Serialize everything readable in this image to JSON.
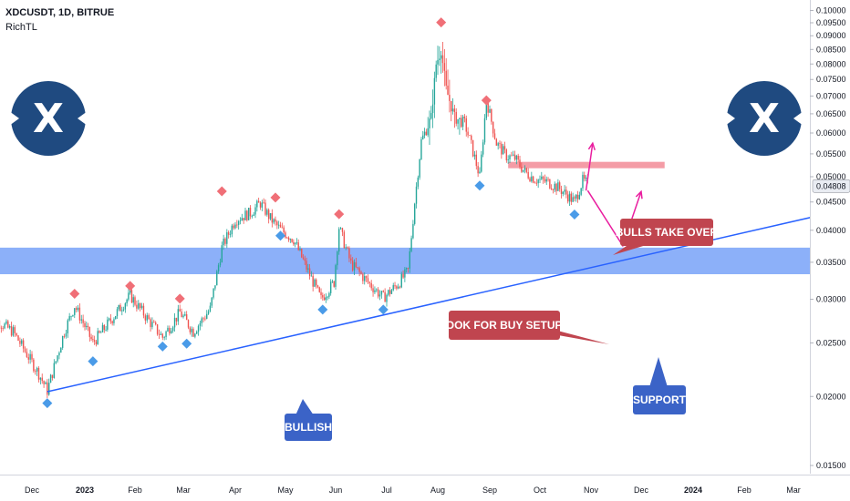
{
  "header": {
    "symbol": "XDCUSDT, 1D, BITRUE",
    "indicator": "RichTL"
  },
  "logos": {
    "letter": "X",
    "color": "#1f4a80"
  },
  "colors": {
    "up": "#26a69a",
    "down": "#ef5350",
    "support_zone": "#5b8ef7",
    "trendline": "#2962ff",
    "resistance_zone": "#f28b96",
    "path_arrow": "#e91e9f",
    "callout_red": "#c0454f",
    "callout_blue": "#3b63c7",
    "marker_top": "#f06f77",
    "marker_bottom": "#4a9be8"
  },
  "callouts": {
    "bulls": "BULLS TAKE OVER",
    "buy": "LOOK FOR BUY SETUPS",
    "bullish": "BULLISH",
    "support": "SUPPORT"
  },
  "current_price": "0.04808",
  "chart_data": {
    "type": "candlestick",
    "title": "XDCUSDT, 1D, BITRUE",
    "y_scale": "log",
    "ylim": [
      0.0145,
      0.101
    ],
    "y_ticks": [
      "0.10000",
      "0.09500",
      "0.09000",
      "0.08500",
      "0.08000",
      "0.07500",
      "0.07000",
      "0.06500",
      "0.06000",
      "0.05500",
      "0.05000",
      "0.04500",
      "0.04000",
      "0.03500",
      "0.03000",
      "0.02500",
      "0.02000",
      "0.01500"
    ],
    "x_ticks": [
      "Dec",
      "2023",
      "Feb",
      "Mar",
      "Apr",
      "May",
      "Jun",
      "Jul",
      "Aug",
      "Sep",
      "Oct",
      "Nov",
      "Dec",
      "2024",
      "Feb",
      "Mar"
    ],
    "x_tick_dates": [
      "2022-12-01",
      "2023-01-01",
      "2023-02-01",
      "2023-03-01",
      "2023-04-01",
      "2023-05-01",
      "2023-06-01",
      "2023-07-01",
      "2023-08-01",
      "2023-09-01",
      "2023-10-01",
      "2023-11-01",
      "2023-12-01",
      "2024-01-01",
      "2024-02-01",
      "2024-03-01"
    ],
    "price_path": [
      {
        "date": "2022-11-05",
        "close": 0.0282
      },
      {
        "date": "2022-11-20",
        "close": 0.0262
      },
      {
        "date": "2022-12-05",
        "close": 0.022
      },
      {
        "date": "2022-12-10",
        "close": 0.0205
      },
      {
        "date": "2022-12-20",
        "close": 0.0262
      },
      {
        "date": "2022-12-26",
        "close": 0.0292
      },
      {
        "date": "2023-01-06",
        "close": 0.025
      },
      {
        "date": "2023-01-20",
        "close": 0.0282
      },
      {
        "date": "2023-01-29",
        "close": 0.0305
      },
      {
        "date": "2023-02-10",
        "close": 0.0272
      },
      {
        "date": "2023-02-17",
        "close": 0.0256
      },
      {
        "date": "2023-02-27",
        "close": 0.0284
      },
      {
        "date": "2023-03-07",
        "close": 0.0262
      },
      {
        "date": "2023-03-17",
        "close": 0.0288
      },
      {
        "date": "2023-03-24",
        "close": 0.0372
      },
      {
        "date": "2023-04-01",
        "close": 0.0418
      },
      {
        "date": "2023-04-10",
        "close": 0.043
      },
      {
        "date": "2023-04-16",
        "close": 0.0448
      },
      {
        "date": "2023-04-22",
        "close": 0.042
      },
      {
        "date": "2023-04-28",
        "close": 0.0401
      },
      {
        "date": "2023-05-06",
        "close": 0.0385
      },
      {
        "date": "2023-05-14",
        "close": 0.0342
      },
      {
        "date": "2023-05-23",
        "close": 0.03
      },
      {
        "date": "2023-05-31",
        "close": 0.0322
      },
      {
        "date": "2023-06-03",
        "close": 0.0405
      },
      {
        "date": "2023-06-10",
        "close": 0.0348
      },
      {
        "date": "2023-06-20",
        "close": 0.0322
      },
      {
        "date": "2023-06-29",
        "close": 0.0302
      },
      {
        "date": "2023-07-08",
        "close": 0.032
      },
      {
        "date": "2023-07-14",
        "close": 0.0338
      },
      {
        "date": "2023-07-18",
        "close": 0.045
      },
      {
        "date": "2023-07-22",
        "close": 0.058
      },
      {
        "date": "2023-07-28",
        "close": 0.064
      },
      {
        "date": "2023-07-31",
        "close": 0.08
      },
      {
        "date": "2023-08-03",
        "close": 0.085
      },
      {
        "date": "2023-08-06",
        "close": 0.072
      },
      {
        "date": "2023-08-11",
        "close": 0.064
      },
      {
        "date": "2023-08-17",
        "close": 0.0625
      },
      {
        "date": "2023-08-21",
        "close": 0.057
      },
      {
        "date": "2023-08-26",
        "close": 0.05
      },
      {
        "date": "2023-08-30",
        "close": 0.069
      },
      {
        "date": "2023-09-05",
        "close": 0.0575
      },
      {
        "date": "2023-09-11",
        "close": 0.0545
      },
      {
        "date": "2023-09-16",
        "close": 0.054
      },
      {
        "date": "2023-09-22",
        "close": 0.051
      },
      {
        "date": "2023-09-28",
        "close": 0.0495
      },
      {
        "date": "2023-10-05",
        "close": 0.049
      },
      {
        "date": "2023-10-12",
        "close": 0.0478
      },
      {
        "date": "2023-10-18",
        "close": 0.0462
      },
      {
        "date": "2023-10-22",
        "close": 0.045
      },
      {
        "date": "2023-10-27",
        "close": 0.0492
      },
      {
        "date": "2023-11-01",
        "close": 0.0481
      }
    ],
    "swing_highs": [
      {
        "date": "2022-12-26",
        "value": 0.03
      },
      {
        "date": "2023-01-29",
        "value": 0.031
      },
      {
        "date": "2023-02-27",
        "value": 0.0294
      },
      {
        "date": "2023-03-24",
        "value": 0.046
      },
      {
        "date": "2023-04-25",
        "value": 0.0448
      },
      {
        "date": "2023-06-03",
        "value": 0.0418
      },
      {
        "date": "2023-08-03",
        "value": 0.093
      },
      {
        "date": "2023-08-30",
        "value": 0.0672
      }
    ],
    "swing_lows": [
      {
        "date": "2022-12-10",
        "value": 0.0199
      },
      {
        "date": "2023-01-06",
        "value": 0.0237
      },
      {
        "date": "2023-02-17",
        "value": 0.0252
      },
      {
        "date": "2023-03-03",
        "value": 0.0255
      },
      {
        "date": "2023-04-28",
        "value": 0.04
      },
      {
        "date": "2023-05-24",
        "value": 0.0294
      },
      {
        "date": "2023-06-29",
        "value": 0.0294
      },
      {
        "date": "2023-08-26",
        "value": 0.0493
      },
      {
        "date": "2023-10-22",
        "value": 0.0437
      }
    ],
    "support_zone": [
      0.0333,
      0.0372
    ],
    "resistance_zone": {
      "range": [
        0.0518,
        0.0532
      ],
      "start": "2023-09-12",
      "end": "2023-12-15"
    },
    "trendline": [
      {
        "date": "2022-12-10",
        "value": 0.0204
      },
      {
        "date": "2024-03-20",
        "value": 0.0428
      }
    ],
    "projection": [
      {
        "date": "2023-10-30",
        "value": 0.0472
      },
      {
        "date": "2023-11-20",
        "value": 0.0375
      },
      {
        "date": "2023-12-01",
        "value": 0.047
      }
    ],
    "alt_projection": [
      {
        "date": "2023-10-29",
        "value": 0.0472
      },
      {
        "date": "2023-11-02",
        "value": 0.0575
      }
    ],
    "last_price": 0.04808
  }
}
